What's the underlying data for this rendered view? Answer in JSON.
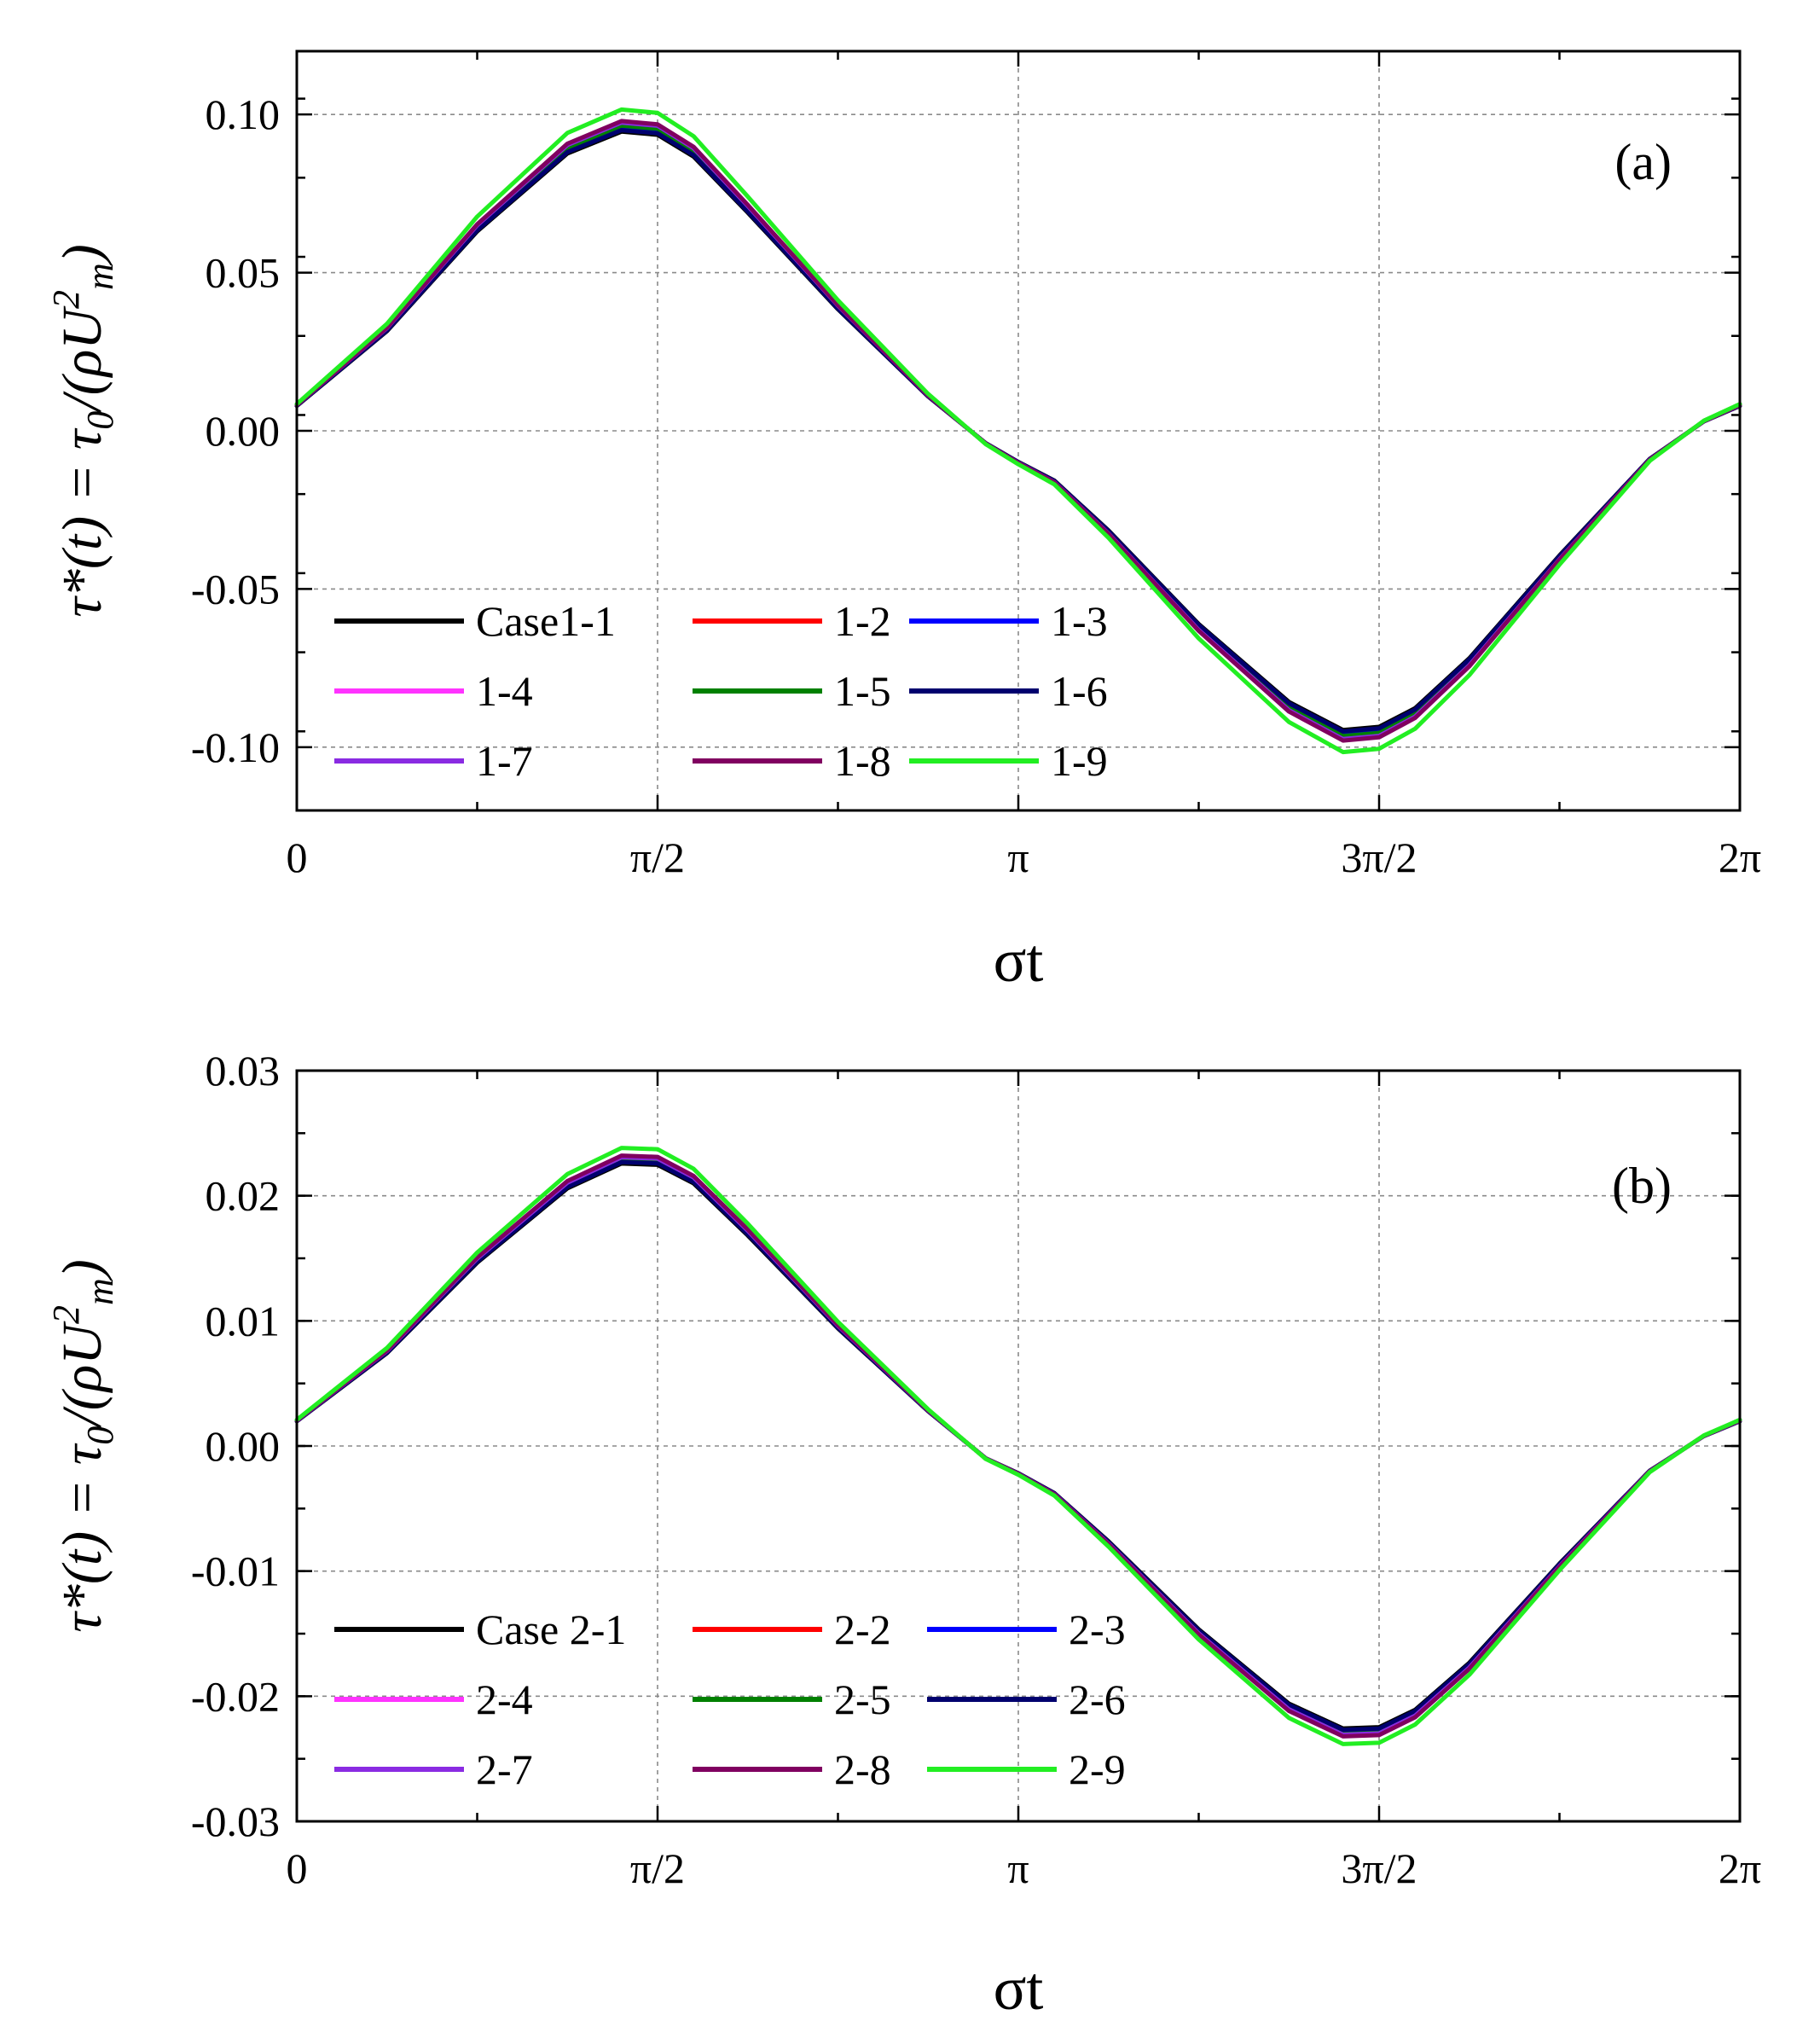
{
  "chart_data": [
    {
      "type": "line",
      "panel_label": "(a)",
      "ylabel_main": "τ*(t) = τ",
      "ylabel_sub": "0",
      "ylabel_rest": "/(ρU",
      "ylabel_sup": "2",
      "ylabel_sub2": "m",
      "ylabel_end": ")",
      "xlabel": "σt",
      "xlim": [
        0,
        6.2832
      ],
      "ylim": [
        -0.12,
        0.12
      ],
      "xticks": [
        {
          "value": 0,
          "label": "0"
        },
        {
          "value": 1.5708,
          "label": "π/2"
        },
        {
          "value": 3.1416,
          "label": "π"
        },
        {
          "value": 4.7124,
          "label": "3π/2"
        },
        {
          "value": 6.2832,
          "label": "2π"
        }
      ],
      "yticks": [
        {
          "value": 0.1,
          "label": "0.10"
        },
        {
          "value": 0.05,
          "label": "0.05"
        },
        {
          "value": 0.0,
          "label": "0.00"
        },
        {
          "value": -0.05,
          "label": "-0.05"
        },
        {
          "value": -0.1,
          "label": "-0.10"
        }
      ],
      "grid": true,
      "legend": "lower-left, 3 columns",
      "base_curve": {
        "sigma_t": [
          0,
          0.3927,
          0.7854,
          1.1781,
          1.4137,
          1.5708,
          1.7279,
          1.9635,
          2.3562,
          2.7489,
          3.0,
          3.1416,
          3.2987,
          3.5343,
          3.927,
          4.3197,
          4.5553,
          4.7124,
          4.8695,
          5.1051,
          5.4978,
          5.8905,
          6.1261,
          6.2832
        ],
        "tau_star": [
          0.008,
          0.032,
          0.064,
          0.089,
          0.096,
          0.095,
          0.088,
          0.07,
          0.039,
          0.011,
          -0.004,
          -0.01,
          -0.016,
          -0.032,
          -0.062,
          -0.087,
          -0.096,
          -0.095,
          -0.089,
          -0.073,
          -0.04,
          -0.009,
          0.003,
          0.008
        ]
      },
      "series": [
        {
          "name": "Case1-1",
          "color": "#000000",
          "scale": 0.985
        },
        {
          "name": "1-2",
          "color": "#ff0000",
          "scale": 0.995
        },
        {
          "name": "1-3",
          "color": "#0000ff",
          "scale": 1.0
        },
        {
          "name": "1-4",
          "color": "#ff33ff",
          "scale": 1.012
        },
        {
          "name": "1-5",
          "color": "#008000",
          "scale": 1.005
        },
        {
          "name": "1-6",
          "color": "#00006e",
          "scale": 0.99
        },
        {
          "name": "1-7",
          "color": "#8a2be2",
          "scale": 1.015
        },
        {
          "name": "1-8",
          "color": "#800060",
          "scale": 1.02
        },
        {
          "name": "1-9",
          "color": "#22ee22",
          "scale": 1.058
        }
      ]
    },
    {
      "type": "line",
      "panel_label": "(b)",
      "ylabel_main": "τ*(t) = τ",
      "ylabel_sub": "0",
      "ylabel_rest": "/(ρU",
      "ylabel_sup": "2",
      "ylabel_sub2": "m",
      "ylabel_end": ")",
      "xlabel": "σt",
      "xlim": [
        0,
        6.2832
      ],
      "ylim": [
        -0.03,
        0.03
      ],
      "xticks": [
        {
          "value": 0,
          "label": "0"
        },
        {
          "value": 1.5708,
          "label": "π/2"
        },
        {
          "value": 3.1416,
          "label": "π"
        },
        {
          "value": 4.7124,
          "label": "3π/2"
        },
        {
          "value": 6.2832,
          "label": "2π"
        }
      ],
      "yticks": [
        {
          "value": 0.03,
          "label": "0.03"
        },
        {
          "value": 0.02,
          "label": "0.02"
        },
        {
          "value": 0.01,
          "label": "0.01"
        },
        {
          "value": 0.0,
          "label": "0.00"
        },
        {
          "value": -0.01,
          "label": "-0.01"
        },
        {
          "value": -0.02,
          "label": "-0.02"
        },
        {
          "value": -0.03,
          "label": "-0.03"
        }
      ],
      "grid": true,
      "legend": "lower-left, 3 columns",
      "base_curve": {
        "sigma_t": [
          0,
          0.3927,
          0.7854,
          1.1781,
          1.4137,
          1.5708,
          1.7279,
          1.9635,
          2.3562,
          2.7489,
          3.0,
          3.1416,
          3.2987,
          3.5343,
          3.927,
          4.3197,
          4.5553,
          4.7124,
          4.8695,
          5.1051,
          5.4978,
          5.8905,
          6.1261,
          6.2832
        ],
        "tau_star": [
          0.002,
          0.0075,
          0.0148,
          0.0208,
          0.0228,
          0.0227,
          0.0212,
          0.017,
          0.0095,
          0.0028,
          -0.001,
          -0.0022,
          -0.0038,
          -0.0077,
          -0.0148,
          -0.0208,
          -0.0228,
          -0.0227,
          -0.0213,
          -0.0175,
          -0.0095,
          -0.002,
          0.0008,
          0.002
        ]
      },
      "series": [
        {
          "name": "Case 2-1",
          "color": "#000000",
          "scale": 0.99
        },
        {
          "name": "2-2",
          "color": "#ff0000",
          "scale": 0.998
        },
        {
          "name": "2-3",
          "color": "#0000ff",
          "scale": 1.0
        },
        {
          "name": "2-4",
          "color": "#ff33ff",
          "scale": 1.01
        },
        {
          "name": "2-5",
          "color": "#008000",
          "scale": 1.005
        },
        {
          "name": "2-6",
          "color": "#00006e",
          "scale": 0.995
        },
        {
          "name": "2-7",
          "color": "#8a2be2",
          "scale": 1.012
        },
        {
          "name": "2-8",
          "color": "#800060",
          "scale": 1.018
        },
        {
          "name": "2-9",
          "color": "#22ee22",
          "scale": 1.045
        }
      ]
    }
  ]
}
